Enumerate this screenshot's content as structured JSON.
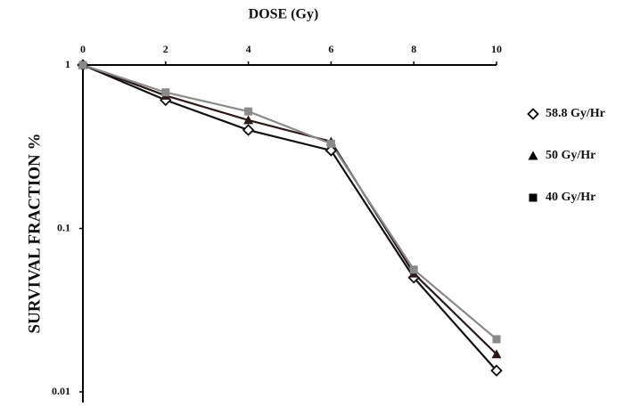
{
  "chart_data": {
    "type": "line",
    "x_label": "DOSE (Gy)",
    "y_label": "SURVIVAL FRACTION  %",
    "x": [
      0,
      2,
      4,
      6,
      8,
      10
    ],
    "xlim": [
      0,
      10
    ],
    "xticks": [
      0,
      2,
      4,
      6,
      8,
      10
    ],
    "ylim": [
      0.01,
      1
    ],
    "yticks": [
      1,
      0.1,
      0.01
    ],
    "y_scale": "log",
    "x_axis_position": "top",
    "series": [
      {
        "name": "58.8 Gy/Hr",
        "color": "#111111",
        "marker": "diamond",
        "values": [
          1,
          0.61,
          0.4,
          0.3,
          0.05,
          0.0135
        ]
      },
      {
        "name": "50 Gy/Hr",
        "color": "#2a1a1a",
        "marker": "triangle",
        "values": [
          1,
          0.65,
          0.46,
          0.34,
          0.053,
          0.017
        ]
      },
      {
        "name": "40 Gy/Hr",
        "color": "#8a8a8a",
        "marker": "square",
        "values": [
          1,
          0.68,
          0.52,
          0.33,
          0.056,
          0.021
        ]
      }
    ]
  }
}
